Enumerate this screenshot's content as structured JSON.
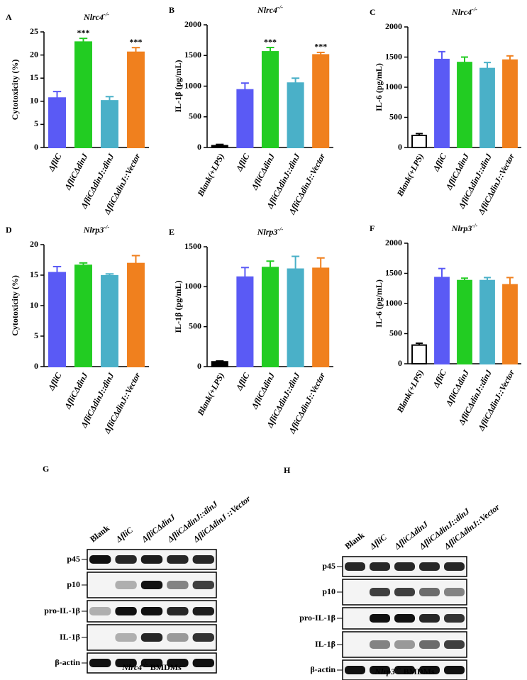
{
  "chart_data": [
    {
      "type": "bar",
      "panel": "A",
      "title": "Nlrc4",
      "title_sup": "-/-",
      "ylabel": "Cytotoxicity (%)",
      "categories": [
        "ΔfliC",
        "ΔfliCΔdinJ",
        "ΔfliCΔdinJ::dinJ",
        "ΔfliCΔdinJ::Vector"
      ],
      "values": [
        10.7,
        22.8,
        10.1,
        20.6
      ],
      "errors": [
        1.4,
        0.8,
        0.9,
        1.0
      ],
      "significance": [
        null,
        "***",
        null,
        "***"
      ],
      "colors": [
        "#5a5af5",
        "#22cc22",
        "#4ab0c8",
        "#f0801e"
      ],
      "ylim": [
        0,
        25
      ],
      "yticks": [
        0,
        5,
        10,
        15,
        20,
        25
      ]
    },
    {
      "type": "bar",
      "panel": "B",
      "title": "Nlrc4",
      "title_sup": "-/-",
      "ylabel": "IL-1β (pg/mL)",
      "categories": [
        "Blank(+LPS)",
        "ΔfliC",
        "ΔfliCΔdinJ",
        "ΔfliCΔdinJ::dinJ",
        "ΔfliCΔdinJ::Vector"
      ],
      "values": [
        30,
        940,
        1560,
        1050,
        1510
      ],
      "errors": [
        20,
        110,
        70,
        80,
        40
      ],
      "significance": [
        null,
        null,
        "***",
        null,
        "***"
      ],
      "colors": [
        "#000000",
        "#5a5af5",
        "#22cc22",
        "#4ab0c8",
        "#f0801e"
      ],
      "ylim": [
        0,
        2000
      ],
      "yticks": [
        0,
        500,
        1000,
        1500,
        2000
      ]
    },
    {
      "type": "bar",
      "panel": "C",
      "title": "Nlrc4",
      "title_sup": "-/-",
      "ylabel": "IL-6 (pg/mL)",
      "categories": [
        "Blank(+LPS)",
        "ΔfliC",
        "ΔfliCΔdinJ",
        "ΔfliCΔdinJ::dinJ",
        "ΔfliCΔdinJ::Vector"
      ],
      "values": [
        200,
        1460,
        1410,
        1310,
        1450
      ],
      "errors": [
        30,
        130,
        90,
        100,
        70
      ],
      "colors": [
        "#ffffff",
        "#5a5af5",
        "#22cc22",
        "#4ab0c8",
        "#f0801e"
      ],
      "ylim": [
        0,
        2000
      ],
      "yticks": [
        0,
        500,
        1000,
        1500,
        2000
      ]
    },
    {
      "type": "bar",
      "panel": "D",
      "title": "Nlrp3",
      "title_sup": "-/-",
      "ylabel": "Cytotoxicity (%)",
      "categories": [
        "ΔfliC",
        "ΔfliCΔdinJ",
        "ΔfliCΔdinJ::dinJ",
        "ΔfliCΔdinJ::Vector"
      ],
      "values": [
        15.4,
        16.6,
        14.9,
        16.9
      ],
      "errors": [
        1.0,
        0.4,
        0.3,
        1.3
      ],
      "colors": [
        "#5a5af5",
        "#22cc22",
        "#4ab0c8",
        "#f0801e"
      ],
      "ylim": [
        0,
        20
      ],
      "yticks": [
        0,
        5,
        10,
        15,
        20
      ]
    },
    {
      "type": "bar",
      "panel": "E",
      "title": "Nlrp3",
      "title_sup": "-/-",
      "ylabel": "IL-1β (pg/mL)",
      "categories": [
        "Blank(+LPS)",
        "ΔfliC",
        "ΔfliCΔdinJ",
        "ΔfliCΔdinJ::dinJ",
        "ΔfliCΔdinJ::Vector"
      ],
      "values": [
        60,
        1120,
        1240,
        1220,
        1230
      ],
      "errors": [
        10,
        120,
        80,
        160,
        130
      ],
      "colors": [
        "#000000",
        "#5a5af5",
        "#22cc22",
        "#4ab0c8",
        "#f0801e"
      ],
      "ylim": [
        0,
        1500
      ],
      "yticks": [
        0,
        500,
        1000,
        1500
      ]
    },
    {
      "type": "bar",
      "panel": "F",
      "title": "Nlrp3",
      "title_sup": "-/-",
      "ylabel": "IL-6 (pg/mL)",
      "categories": [
        "Blank(+LPS)",
        "ΔfliC",
        "ΔfliCΔdinJ",
        "ΔfliCΔdinJ::dinJ",
        "ΔfliCΔdinJ::Vector"
      ],
      "values": [
        310,
        1430,
        1380,
        1380,
        1310
      ],
      "errors": [
        30,
        150,
        40,
        50,
        120
      ],
      "colors": [
        "#ffffff",
        "#5a5af5",
        "#22cc22",
        "#4ab0c8",
        "#f0801e"
      ],
      "ylim": [
        0,
        2000
      ],
      "yticks": [
        0,
        500,
        1000,
        1500,
        2000
      ]
    }
  ],
  "blots": [
    {
      "panel": "G",
      "lanes": [
        "Blank",
        "ΔfliC",
        "ΔfliCΔdinJ",
        "ΔfliCΔdinJ::dinJ",
        "ΔfliCΔdinJ ::Vector"
      ],
      "rows": [
        "p45",
        "p10",
        "pro-IL-1β",
        "IL-1β",
        "β-actin"
      ],
      "caption": "Nlrc4",
      "caption_sup": "-/-",
      "caption_suffix": " BMDMs"
    },
    {
      "panel": "H",
      "lanes": [
        "Blank",
        "ΔfliC",
        "ΔfliCΔdinJ",
        "ΔfliCΔdinJ::dinJ",
        "ΔfliCΔdinJ::Vector"
      ],
      "rows": [
        "p45",
        "p10",
        "pro-IL-1β",
        "IL-1β",
        "β-actin"
      ],
      "caption": "Nlrp3",
      "caption_sup": "-/-",
      "caption_suffix": " BMDMs"
    }
  ]
}
